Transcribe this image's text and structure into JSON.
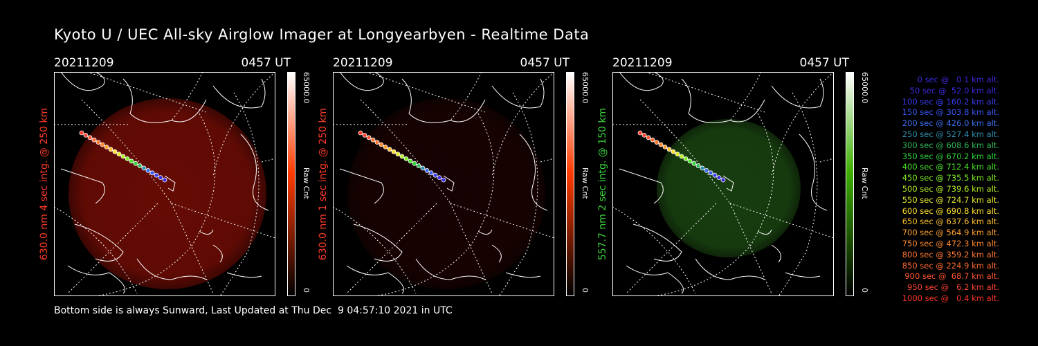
{
  "title": "Kyoto U / UEC All-sky Airglow Imager at Longyearbyen - Realtime Data",
  "footer": "Bottom side is always Sunward, Last Updated at Thu Dec  9 04:57:10 2021 in UTC",
  "panels": [
    {
      "date": "20211209",
      "time": "0457 UT",
      "ylabel": "630.0 nm 4 sec intg. @ 250 km",
      "label_color": "#ff3b2b",
      "cbar_max": "65000.0",
      "cbar_min": "0",
      "cbar_unit": "Raw Cnt",
      "glow_color": "#b71408",
      "glow_level": 0.55,
      "cbar_color": "#ff3a00"
    },
    {
      "date": "20211209",
      "time": "0457 UT",
      "ylabel": "630.0 nm 1 sec intg. @ 250 km",
      "label_color": "#ff3b2b",
      "cbar_max": "65000.0",
      "cbar_min": "0",
      "cbar_unit": "Raw Cnt",
      "glow_color": "#5a0a06",
      "glow_level": 0.25,
      "cbar_color": "#ff3a00"
    },
    {
      "date": "20211209",
      "time": "0457 UT",
      "ylabel": "557.7 nm 2 sec intg. @ 150 km",
      "label_color": "#3cd23c",
      "cbar_max": "65000.0",
      "cbar_min": "0",
      "cbar_unit": "Raw Cnt",
      "glow_color": "#2f7a1e",
      "glow_level": 0.5,
      "cbar_color": "#3cae00"
    }
  ],
  "legend": [
    {
      "text": "0 sec @   0.1 km alt.",
      "color": "#3a2bdc"
    },
    {
      "text": "50 sec @  52.0 km alt.",
      "color": "#3a2bdc"
    },
    {
      "text": "100 sec @ 160.2 km alt.",
      "color": "#3a3cf0"
    },
    {
      "text": "150 sec @ 303.8 km alt.",
      "color": "#3a55f0"
    },
    {
      "text": "200 sec @ 426.0 km alt.",
      "color": "#3a6ef0"
    },
    {
      "text": "250 sec @ 527.4 km alt.",
      "color": "#2d8fb0"
    },
    {
      "text": "300 sec @ 608.6 km alt.",
      "color": "#2fba59"
    },
    {
      "text": "350 sec @ 670.2 km alt.",
      "color": "#2fd63a"
    },
    {
      "text": "400 sec @ 712.4 km alt.",
      "color": "#48e22a"
    },
    {
      "text": "450 sec @ 735.5 km alt.",
      "color": "#80ee2a"
    },
    {
      "text": "500 sec @ 739.6 km alt.",
      "color": "#b8f02a"
    },
    {
      "text": "550 sec @ 724.7 km alt.",
      "color": "#e8ee2a"
    },
    {
      "text": "600 sec @ 690.8 km alt.",
      "color": "#ffe030"
    },
    {
      "text": "650 sec @ 637.6 km alt.",
      "color": "#ffc030"
    },
    {
      "text": "700 sec @ 564.9 km alt.",
      "color": "#ffa030"
    },
    {
      "text": "750 sec @ 472.3 km alt.",
      "color": "#ff8a30"
    },
    {
      "text": "800 sec @ 359.2 km alt.",
      "color": "#ff7a30"
    },
    {
      "text": "850 sec @ 224.9 km alt.",
      "color": "#ff6a30"
    },
    {
      "text": "900 sec @  68.7 km alt.",
      "color": "#ff5530"
    },
    {
      "text": "950 sec @   6.2 km alt.",
      "color": "#ff4530"
    },
    {
      "text": "1000 sec @   0.4 km alt.",
      "color": "#ff3528"
    }
  ]
}
